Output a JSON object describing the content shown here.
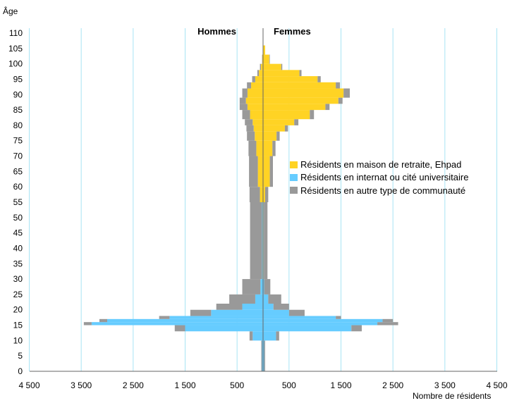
{
  "chart_data": {
    "type": "bar",
    "subtype": "population-pyramid-stacked",
    "y_axis_title": "Âge",
    "x_axis_title": "Nombre de résidents",
    "left_label": "Hommes",
    "right_label": "Femmes",
    "x_tick_labels": [
      "4 500",
      "3 500",
      "2 500",
      "1 500",
      "500",
      "500",
      "1 500",
      "2 500",
      "3 500",
      "4 500"
    ],
    "x_tick_values": [
      -4500,
      -3500,
      -2500,
      -1500,
      -500,
      500,
      1500,
      2500,
      3500,
      4500
    ],
    "xlim": [
      -4500,
      4500
    ],
    "y_tick_labels": [
      "0",
      "5",
      "10",
      "15",
      "20",
      "25",
      "30",
      "35",
      "40",
      "45",
      "50",
      "55",
      "60",
      "65",
      "70",
      "75",
      "80",
      "85",
      "90",
      "95",
      "100",
      "105",
      "110"
    ],
    "ylim": [
      0,
      110
    ],
    "grid": "vertical",
    "legend_position": "right",
    "series": [
      {
        "name": "Résidents en maison de retraite, Ehpad",
        "color": "#ffd324"
      },
      {
        "name": "Résidents en internat ou cité universitaire",
        "color": "#66ccff"
      },
      {
        "name": "Résidents en autre type de communauté",
        "color": "#999999"
      }
    ],
    "age_groups": [
      {
        "age": [
          0,
          10
        ],
        "men": [
          0,
          20,
          15
        ],
        "women": [
          0,
          20,
          20
        ]
      },
      {
        "age": [
          10,
          13
        ],
        "men": [
          0,
          200,
          60
        ],
        "women": [
          0,
          250,
          60
        ]
      },
      {
        "age": [
          13,
          15
        ],
        "men": [
          0,
          1500,
          200
        ],
        "women": [
          0,
          1700,
          200
        ]
      },
      {
        "age": [
          15,
          16
        ],
        "men": [
          0,
          3300,
          150
        ],
        "women": [
          0,
          2200,
          400
        ]
      },
      {
        "age": [
          16,
          17
        ],
        "men": [
          0,
          3000,
          150
        ],
        "women": [
          0,
          2300,
          200
        ]
      },
      {
        "age": [
          17,
          18
        ],
        "men": [
          0,
          1800,
          200
        ],
        "women": [
          0,
          1400,
          100
        ]
      },
      {
        "age": [
          18,
          20
        ],
        "men": [
          0,
          1000,
          400
        ],
        "women": [
          0,
          500,
          300
        ]
      },
      {
        "age": [
          20,
          22
        ],
        "men": [
          0,
          400,
          500
        ],
        "women": [
          0,
          200,
          300
        ]
      },
      {
        "age": [
          22,
          25
        ],
        "men": [
          0,
          150,
          500
        ],
        "women": [
          0,
          100,
          250
        ]
      },
      {
        "age": [
          25,
          30
        ],
        "men": [
          0,
          50,
          350
        ],
        "women": [
          0,
          20,
          120
        ]
      },
      {
        "age": [
          30,
          55
        ],
        "men": [
          10,
          10,
          230
        ],
        "women": [
          10,
          5,
          70
        ]
      },
      {
        "age": [
          55,
          60
        ],
        "men": [
          60,
          0,
          200
        ],
        "women": [
          40,
          0,
          60
        ]
      },
      {
        "age": [
          60,
          70
        ],
        "men": [
          100,
          0,
          170
        ],
        "women": [
          130,
          0,
          60
        ]
      },
      {
        "age": [
          70,
          75
        ],
        "men": [
          130,
          0,
          150
        ],
        "women": [
          180,
          0,
          60
        ]
      },
      {
        "age": [
          75,
          78
        ],
        "men": [
          160,
          0,
          150
        ],
        "women": [
          260,
          0,
          60
        ]
      },
      {
        "age": [
          78,
          80
        ],
        "men": [
          180,
          0,
          140
        ],
        "women": [
          420,
          0,
          60
        ]
      },
      {
        "age": [
          80,
          82
        ],
        "men": [
          200,
          0,
          150
        ],
        "women": [
          600,
          0,
          80
        ]
      },
      {
        "age": [
          82,
          85
        ],
        "men": [
          250,
          0,
          150
        ],
        "women": [
          900,
          0,
          80
        ]
      },
      {
        "age": [
          85,
          87
        ],
        "men": [
          300,
          0,
          150
        ],
        "women": [
          1200,
          0,
          80
        ]
      },
      {
        "age": [
          87,
          89
        ],
        "men": [
          330,
          0,
          120
        ],
        "women": [
          1450,
          0,
          80
        ]
      },
      {
        "age": [
          89,
          92
        ],
        "men": [
          300,
          0,
          100
        ],
        "women": [
          1550,
          0,
          120
        ]
      },
      {
        "age": [
          92,
          94
        ],
        "men": [
          230,
          0,
          80
        ],
        "women": [
          1400,
          0,
          80
        ]
      },
      {
        "age": [
          94,
          96
        ],
        "men": [
          150,
          0,
          60
        ],
        "women": [
          1050,
          0,
          60
        ]
      },
      {
        "age": [
          96,
          98
        ],
        "men": [
          80,
          0,
          30
        ],
        "women": [
          700,
          0,
          40
        ]
      },
      {
        "age": [
          98,
          100
        ],
        "men": [
          40,
          0,
          20
        ],
        "women": [
          350,
          0,
          20
        ]
      },
      {
        "age": [
          100,
          103
        ],
        "men": [
          15,
          0,
          5
        ],
        "women": [
          120,
          0,
          10
        ]
      },
      {
        "age": [
          103,
          106
        ],
        "men": [
          5,
          0,
          0
        ],
        "women": [
          40,
          0,
          0
        ]
      }
    ]
  }
}
